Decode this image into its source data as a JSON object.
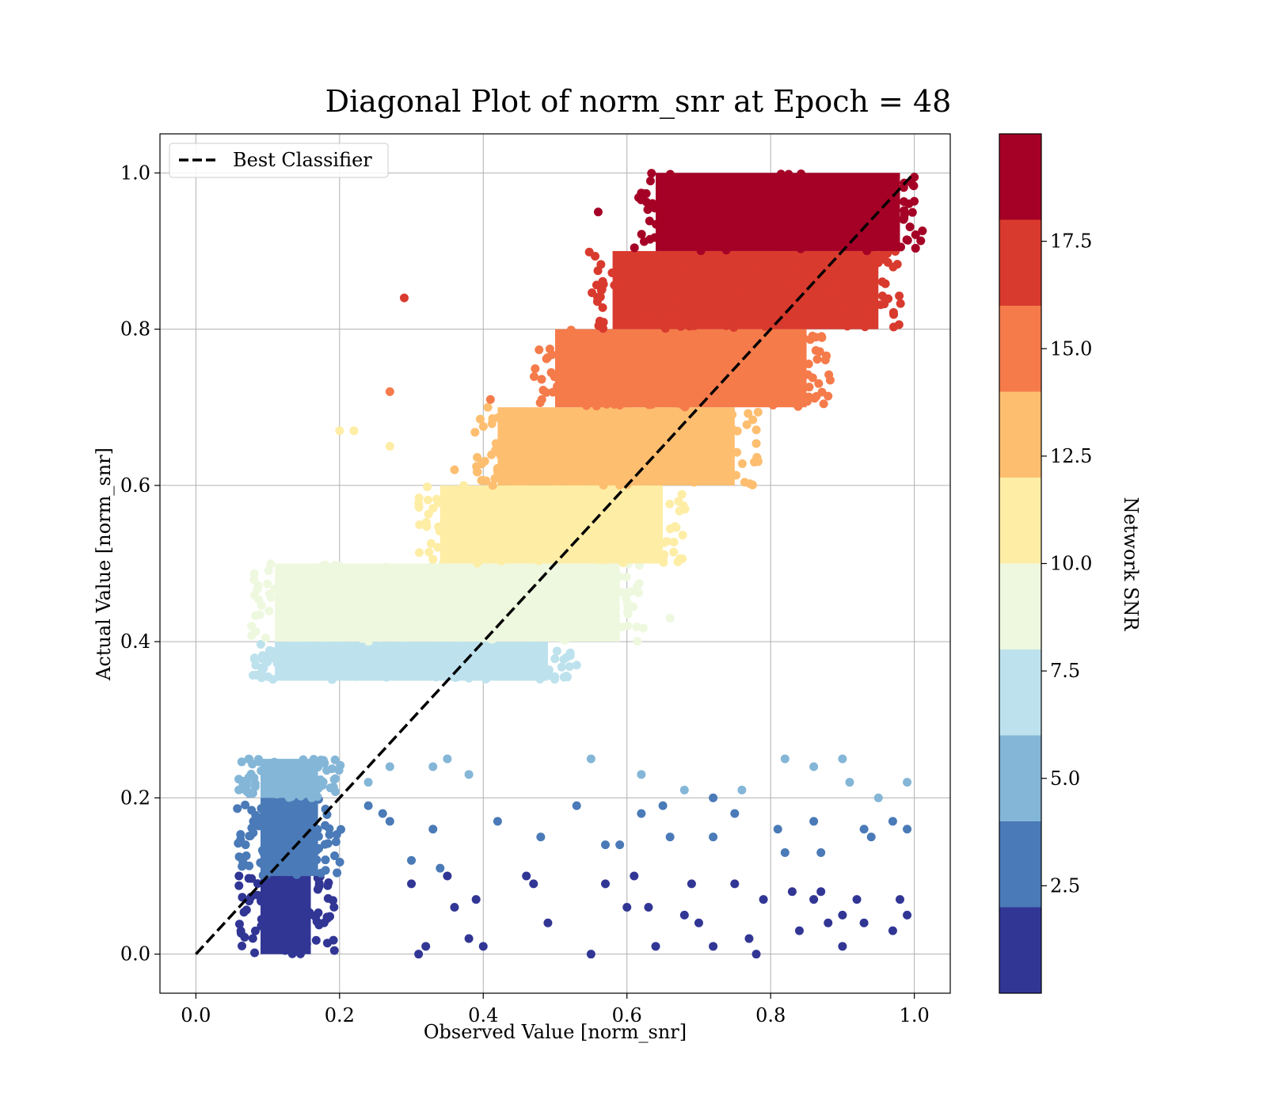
{
  "chart_data": {
    "type": "scatter",
    "title": "Diagonal Plot of norm_snr at Epoch = 48",
    "xlabel": "Observed Value [norm_snr]",
    "ylabel": "Actual Value [norm_snr]",
    "xlim": [
      -0.05,
      1.05
    ],
    "ylim": [
      -0.05,
      1.05
    ],
    "x_ticks": [
      "0.0",
      "0.2",
      "0.4",
      "0.6",
      "0.8",
      "1.0"
    ],
    "y_ticks": [
      "0.0",
      "0.2",
      "0.4",
      "0.6",
      "0.8",
      "1.0"
    ],
    "grid": true,
    "legend": {
      "position": "top-left",
      "entries": [
        {
          "label": "Best Classifier",
          "style": "black dashed line"
        }
      ]
    },
    "reference_line": {
      "label": "Best Classifier",
      "x": [
        0.0,
        1.0
      ],
      "y": [
        0.0,
        1.0
      ],
      "color": "#000000",
      "dash": true
    },
    "colorbar": {
      "label": "Network SNR",
      "range": [
        0,
        20
      ],
      "ticks": [
        "2.5",
        "5.0",
        "7.5",
        "10.0",
        "12.5",
        "15.0",
        "17.5"
      ],
      "tick_values": [
        2.5,
        5.0,
        7.5,
        10.0,
        12.5,
        15.0,
        17.5
      ],
      "bins": [
        {
          "from": 0,
          "to": 2,
          "color": "#313695"
        },
        {
          "from": 2,
          "to": 4,
          "color": "#4a7ab7"
        },
        {
          "from": 4,
          "to": 6,
          "color": "#84b6d7"
        },
        {
          "from": 6,
          "to": 8,
          "color": "#bde2ed"
        },
        {
          "from": 8,
          "to": 10,
          "color": "#eef8df"
        },
        {
          "from": 10,
          "to": 12,
          "color": "#feeda5"
        },
        {
          "from": 12,
          "to": 14,
          "color": "#fdbe70"
        },
        {
          "from": 14,
          "to": 16,
          "color": "#f57b4b"
        },
        {
          "from": 16,
          "to": 18,
          "color": "#d93a2e"
        },
        {
          "from": 18,
          "to": 20,
          "color": "#a50026"
        }
      ]
    },
    "bands": [
      {
        "y_range": [
          0.0,
          0.1
        ],
        "x_range": [
          0.09,
          0.16
        ],
        "snr_bin": 0
      },
      {
        "y_range": [
          0.1,
          0.2
        ],
        "x_range": [
          0.09,
          0.17
        ],
        "snr_bin": 1
      },
      {
        "y_range": [
          0.2,
          0.25
        ],
        "x_range": [
          0.09,
          0.17
        ],
        "snr_bin": 2
      },
      {
        "y_range": [
          0.35,
          0.4
        ],
        "x_range": [
          0.11,
          0.49
        ],
        "snr_bin": 3
      },
      {
        "y_range": [
          0.4,
          0.5
        ],
        "x_range": [
          0.11,
          0.59
        ],
        "snr_bin": 4
      },
      {
        "y_range": [
          0.5,
          0.6
        ],
        "x_range": [
          0.34,
          0.65
        ],
        "snr_bin": 5
      },
      {
        "y_range": [
          0.6,
          0.7
        ],
        "x_range": [
          0.42,
          0.75
        ],
        "snr_bin": 6
      },
      {
        "y_range": [
          0.7,
          0.8
        ],
        "x_range": [
          0.5,
          0.85
        ],
        "snr_bin": 7
      },
      {
        "y_range": [
          0.8,
          0.9
        ],
        "x_range": [
          0.58,
          0.95
        ],
        "snr_bin": 8
      },
      {
        "y_range": [
          0.9,
          1.0
        ],
        "x_range": [
          0.64,
          0.98
        ],
        "snr_bin": 9
      }
    ],
    "outliers": [
      [
        0.29,
        0.84,
        8
      ],
      [
        0.27,
        0.72,
        7
      ],
      [
        0.2,
        0.67,
        5
      ],
      [
        0.22,
        0.67,
        5
      ],
      [
        0.27,
        0.65,
        5
      ],
      [
        0.41,
        0.71,
        7
      ],
      [
        0.56,
        0.95,
        9
      ],
      [
        0.36,
        0.62,
        6
      ],
      [
        0.66,
        0.43,
        4
      ],
      [
        0.53,
        0.37,
        3
      ],
      [
        0.55,
        0.25,
        2
      ],
      [
        0.62,
        0.23,
        2
      ],
      [
        0.68,
        0.21,
        2
      ],
      [
        0.76,
        0.21,
        2
      ],
      [
        0.82,
        0.25,
        2
      ],
      [
        0.86,
        0.24,
        2
      ],
      [
        0.9,
        0.25,
        2
      ],
      [
        0.99,
        0.22,
        2
      ],
      [
        0.95,
        0.2,
        2
      ],
      [
        0.91,
        0.22,
        2
      ],
      [
        0.53,
        0.19,
        1
      ],
      [
        0.62,
        0.18,
        1
      ],
      [
        0.72,
        0.2,
        1
      ],
      [
        0.75,
        0.18,
        1
      ],
      [
        0.81,
        0.16,
        1
      ],
      [
        0.86,
        0.17,
        1
      ],
      [
        0.93,
        0.16,
        1
      ],
      [
        0.99,
        0.16,
        1
      ],
      [
        0.42,
        0.17,
        1
      ],
      [
        0.57,
        0.14,
        1
      ],
      [
        0.65,
        0.19,
        1
      ],
      [
        0.66,
        0.15,
        1
      ],
      [
        0.72,
        0.15,
        1
      ],
      [
        0.82,
        0.13,
        1
      ],
      [
        0.87,
        0.13,
        1
      ],
      [
        0.48,
        0.15,
        1
      ],
      [
        0.59,
        0.14,
        1
      ],
      [
        0.94,
        0.15,
        1
      ],
      [
        0.97,
        0.17,
        1
      ],
      [
        0.55,
        0.0,
        0
      ],
      [
        0.64,
        0.01,
        0
      ],
      [
        0.72,
        0.01,
        0
      ],
      [
        0.78,
        0.0,
        0
      ],
      [
        0.9,
        0.01,
        0
      ],
      [
        0.93,
        0.04,
        0
      ],
      [
        0.99,
        0.05,
        0
      ],
      [
        0.84,
        0.03,
        0
      ],
      [
        0.88,
        0.04,
        0
      ],
      [
        0.6,
        0.06,
        0
      ],
      [
        0.63,
        0.06,
        0
      ],
      [
        0.68,
        0.05,
        0
      ],
      [
        0.69,
        0.09,
        0
      ],
      [
        0.57,
        0.09,
        0
      ],
      [
        0.61,
        0.1,
        0
      ],
      [
        0.75,
        0.09,
        0
      ],
      [
        0.79,
        0.07,
        0
      ],
      [
        0.83,
        0.08,
        0
      ],
      [
        0.86,
        0.07,
        0
      ],
      [
        0.92,
        0.07,
        0
      ],
      [
        0.98,
        0.07,
        0
      ],
      [
        0.47,
        0.09,
        0
      ],
      [
        0.39,
        0.07,
        0
      ],
      [
        0.36,
        0.06,
        0
      ],
      [
        0.38,
        0.02,
        0
      ],
      [
        0.4,
        0.01,
        0
      ],
      [
        0.49,
        0.04,
        0
      ],
      [
        0.46,
        0.1,
        0
      ],
      [
        0.7,
        0.04,
        0
      ],
      [
        0.87,
        0.08,
        0
      ],
      [
        0.9,
        0.05,
        0
      ],
      [
        0.97,
        0.03,
        0
      ],
      [
        0.77,
        0.02,
        0
      ],
      [
        0.32,
        0.01,
        0
      ],
      [
        0.31,
        0.0,
        0
      ],
      [
        0.3,
        0.09,
        0
      ],
      [
        0.06,
        0.1,
        0
      ],
      [
        0.08,
        0.17,
        1
      ],
      [
        0.24,
        0.19,
        1
      ],
      [
        0.26,
        0.18,
        1
      ],
      [
        0.27,
        0.17,
        1
      ],
      [
        0.3,
        0.12,
        1
      ],
      [
        0.34,
        0.11,
        1
      ],
      [
        0.35,
        0.1,
        0
      ],
      [
        0.33,
        0.16,
        1
      ],
      [
        0.35,
        0.25,
        2
      ],
      [
        0.38,
        0.23,
        2
      ],
      [
        0.33,
        0.24,
        2
      ],
      [
        0.24,
        0.22,
        2
      ],
      [
        0.27,
        0.24,
        2
      ]
    ]
  }
}
